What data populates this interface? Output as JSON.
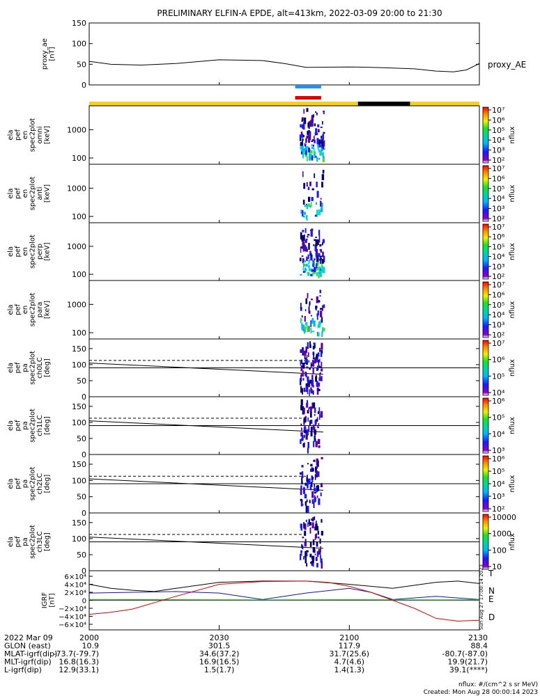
{
  "title": "PRELIMINARY ELFIN-A EPDE, alt=413km, 2022-03-09 20:00 to 21:30",
  "panels": {
    "proxy": {
      "ylabel": [
        "proxy_ae",
        "[nT]"
      ],
      "right_label": "proxy_AE",
      "yticks": [
        "150",
        "100",
        "50",
        "0"
      ]
    },
    "omni": {
      "ylabel": [
        "ela",
        "pef",
        "en",
        "spec2plot",
        "omni",
        "[keV]"
      ],
      "yticks": [
        "1000",
        "100"
      ],
      "cbar_label": "nflux",
      "cbar_ticks": [
        "10⁷",
        "10⁶",
        "10⁵",
        "10⁴",
        "10³",
        "10²"
      ]
    },
    "anti": {
      "ylabel": [
        "ela",
        "pef",
        "en",
        "spec2plot",
        "anti",
        "[keV]"
      ],
      "yticks": [
        "1000",
        "100"
      ],
      "cbar_label": "nflux",
      "cbar_ticks": [
        "10⁷",
        "10⁶",
        "10⁵",
        "10⁴",
        "10³",
        "10²"
      ]
    },
    "perp": {
      "ylabel": [
        "ela",
        "pef",
        "en",
        "spec2plot",
        "perp",
        "[keV]"
      ],
      "yticks": [
        "1000",
        "100"
      ],
      "cbar_label": "nflux",
      "cbar_ticks": [
        "10⁷",
        "10⁶",
        "10⁵",
        "10⁴",
        "10³",
        "10²"
      ]
    },
    "para": {
      "ylabel": [
        "ela",
        "pef",
        "en",
        "spec2plot",
        "para",
        "[keV]"
      ],
      "yticks": [
        "1000",
        "100"
      ],
      "cbar_label": "nflux",
      "cbar_ticks": [
        "10⁷",
        "10⁶",
        "10⁵",
        "10⁴",
        "10³",
        "10²"
      ]
    },
    "ch0": {
      "ylabel": [
        "ela",
        "pef",
        "pa",
        "spec2plot",
        "ch0LC",
        "[deg]"
      ],
      "yticks": [
        "150",
        "100",
        "50",
        "0"
      ],
      "cbar_label": "nflux",
      "cbar_ticks": [
        "10⁷",
        "10⁶",
        "10⁵",
        "10⁴"
      ]
    },
    "ch1": {
      "ylabel": [
        "ela",
        "pef",
        "pa",
        "spec2plot",
        "ch1LC",
        "[deg]"
      ],
      "yticks": [
        "150",
        "100",
        "50",
        "0"
      ],
      "cbar_label": "nflux",
      "cbar_ticks": [
        "10⁶",
        "10⁵",
        "10⁴",
        "10³"
      ]
    },
    "ch2": {
      "ylabel": [
        "ela",
        "pef",
        "pa",
        "spec2plot",
        "ch2LC",
        "[deg]"
      ],
      "yticks": [
        "150",
        "100",
        "50",
        "0"
      ],
      "cbar_label": "nflux",
      "cbar_ticks": [
        "10⁶",
        "10⁵",
        "10⁴",
        "10³",
        "10²"
      ]
    },
    "ch3": {
      "ylabel": [
        "ela",
        "pef",
        "pa",
        "spec2plot",
        "ch3LC",
        "[deg]"
      ],
      "yticks": [
        "150",
        "100",
        "50",
        "0"
      ],
      "cbar_label": "nflux",
      "cbar_ticks": [
        "10000",
        "1000",
        "100",
        "10"
      ]
    },
    "igrf": {
      "ylabel": [
        "IGRF",
        "[nT]"
      ],
      "yticks": [
        "6×10⁴",
        "4×10⁴",
        "2×10⁴",
        "0",
        "−2×10⁴",
        "−4×10⁴",
        "−6×10⁴"
      ],
      "legend": [
        "T",
        "N",
        "E",
        "D"
      ],
      "side_note": "Sun Aug 27 17:00:14 2023"
    }
  },
  "xaxis": {
    "ticks": [
      "2000",
      "2030",
      "2100",
      "2130"
    ]
  },
  "ephemeris": {
    "rows": [
      {
        "label": "2022 Mar 09",
        "values": [
          "2000",
          "2030",
          "2100",
          "2130"
        ]
      },
      {
        "label": "GLON (east)",
        "values": [
          "10.9",
          "301.5",
          "117.9",
          "88.4"
        ]
      },
      {
        "label": "MLAT-igrf(dip)",
        "values": [
          "-73.7(-79.7)",
          "34.6(37.2)",
          "31.7(25.6)",
          "-80.7(-87.0)"
        ]
      },
      {
        "label": "MLT-igrf(dip)",
        "values": [
          "16.8(16.3)",
          "16.9(16.5)",
          "4.7(4.6)",
          "19.9(21.7)"
        ]
      },
      {
        "label": "L-igrf(dip)",
        "values": [
          "12.9(33.1)",
          "1.5(1.7)",
          "1.4(1.3)",
          "39.1(****)"
        ]
      }
    ]
  },
  "footer": {
    "units": "nflux: #/(cm^2 s sr MeV)",
    "created": "Created: Mon Aug 28 00:00:14 2023"
  },
  "colors": {
    "bar_yellow": "#f5d020",
    "bar_black": "#000000",
    "marker_blue": "#1e90ff",
    "marker_red": "#e00000",
    "T": "#000000",
    "N": "#1010c0",
    "E": "#10c010",
    "D": "#e00000"
  },
  "chart_data": [
    {
      "type": "line",
      "title": "PRELIMINARY ELFIN-A EPDE, alt=413km, 2022-03-09 20:00 to 21:30",
      "ylabel": "proxy_ae [nT]",
      "ylim": [
        0,
        150
      ],
      "series": [
        {
          "name": "proxy_AE",
          "x": [
            0,
            5,
            12,
            20,
            30,
            40,
            45,
            50,
            60,
            65,
            70,
            75,
            80,
            84,
            87,
            90
          ],
          "values": [
            48,
            40,
            38,
            42,
            52,
            50,
            42,
            32,
            33,
            32,
            30,
            28,
            22,
            20,
            25,
            42
          ]
        }
      ]
    },
    {
      "type": "heatmap",
      "title": "",
      "panels": [
        "omni",
        "anti",
        "perp",
        "para"
      ],
      "ylabel": "[keV]",
      "yscale": "log",
      "ylim": [
        60,
        7000
      ],
      "active_interval_minutes": [
        48,
        55
      ],
      "colorbar": {
        "label": "nflux",
        "range": [
          100,
          10000000
        ],
        "scale": "log"
      }
    },
    {
      "type": "heatmap",
      "title": "",
      "panels": [
        "ch0LC",
        "ch1LC",
        "ch2LC",
        "ch3LC"
      ],
      "ylabel": "[deg]",
      "ylim": [
        0,
        180
      ],
      "active_interval_minutes": [
        49,
        54
      ],
      "lines": {
        "solid_start": 105,
        "solid_end": 70,
        "dashed": 113,
        "horizontal": 90
      }
    },
    {
      "type": "line",
      "title": "",
      "ylabel": "IGRF [nT]",
      "ylim": [
        -60000,
        60000
      ],
      "series": [
        {
          "name": "T",
          "x": [
            0,
            5,
            10,
            15,
            20,
            30,
            40,
            50,
            60,
            70,
            80,
            85,
            90
          ],
          "values": [
            40000,
            30000,
            25000,
            22000,
            30000,
            45000,
            48000,
            48000,
            40000,
            30000,
            45000,
            48000,
            42000
          ]
        },
        {
          "name": "N",
          "x": [
            0,
            10,
            20,
            30,
            40,
            50,
            60,
            65,
            70,
            80,
            90
          ],
          "values": [
            18000,
            20000,
            22000,
            18000,
            2000,
            18000,
            30000,
            20000,
            2000,
            10000,
            2000
          ]
        },
        {
          "name": "E",
          "x": [
            0,
            20,
            40,
            60,
            80,
            90
          ],
          "values": [
            2000,
            1500,
            1000,
            1500,
            1000,
            1500
          ]
        },
        {
          "name": "D",
          "x": [
            0,
            5,
            10,
            20,
            30,
            40,
            50,
            55,
            60,
            65,
            70,
            75,
            80,
            85,
            90
          ],
          "values": [
            -35000,
            -30000,
            -22000,
            10000,
            40000,
            47000,
            48000,
            45000,
            35000,
            20000,
            0,
            -20000,
            -45000,
            -52000,
            -50000
          ]
        }
      ]
    }
  ]
}
